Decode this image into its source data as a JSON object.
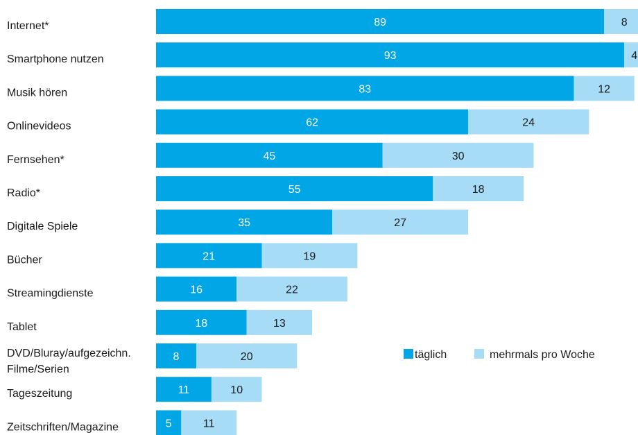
{
  "chart_data": {
    "type": "bar",
    "orientation": "horizontal",
    "stacked": true,
    "title": "",
    "xlabel": "",
    "ylabel": "",
    "categories": [
      [
        "Internet*"
      ],
      [
        "Smartphone nutzen"
      ],
      [
        "Musik hören"
      ],
      [
        "Onlinevideos"
      ],
      [
        "Fernsehen*"
      ],
      [
        "Radio*"
      ],
      [
        "Digitale Spiele"
      ],
      [
        "Bücher"
      ],
      [
        "Streamingdienste"
      ],
      [
        "Tablet"
      ],
      [
        "DVD/Bluray/aufgezeichn.",
        "Filme/Serien"
      ],
      [
        "Tageszeitung"
      ],
      [
        "Zeitschriften/Magazine"
      ]
    ],
    "series": [
      {
        "name": "täglich",
        "color": "#00a6e6",
        "label_color": "#ffffff",
        "values": [
          89,
          93,
          83,
          62,
          45,
          55,
          35,
          21,
          16,
          18,
          8,
          11,
          5
        ]
      },
      {
        "name": "mehrmals pro Woche",
        "color": "#a6dcf5",
        "label_color": "#1a1a1a",
        "values": [
          8,
          4,
          12,
          24,
          30,
          18,
          27,
          19,
          22,
          13,
          20,
          10,
          11
        ]
      }
    ],
    "xlim": [
      0,
      100
    ],
    "grid": false,
    "legend_position": "right-middle"
  }
}
